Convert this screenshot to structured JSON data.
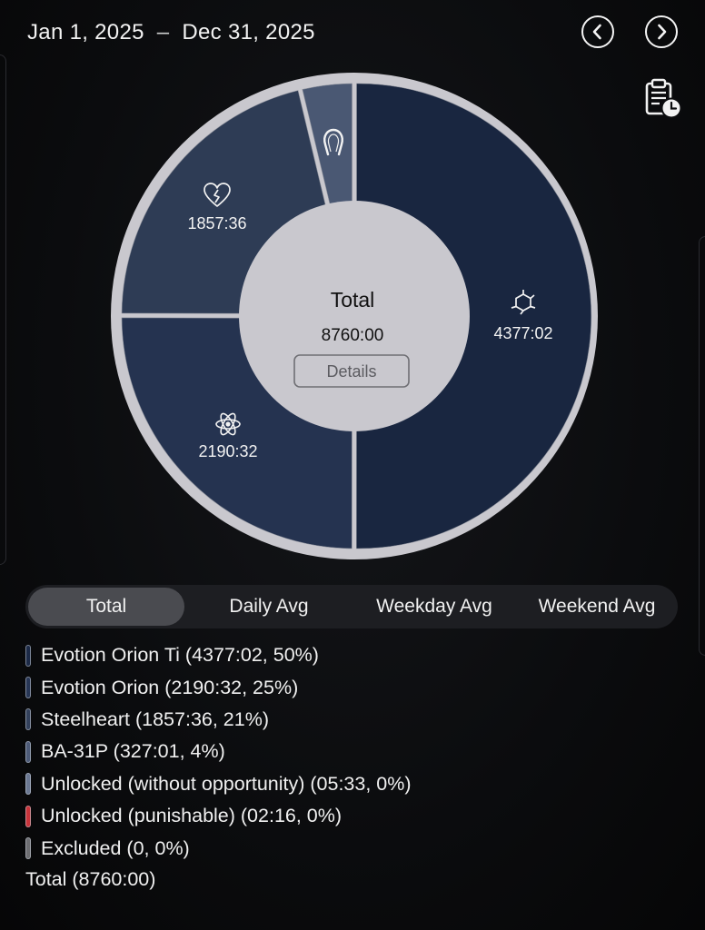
{
  "header": {
    "date_start": "Jan 1, 2025",
    "date_separator": "–",
    "date_end": "Dec 31, 2025",
    "prev_icon": "chevron-left-icon",
    "next_icon": "chevron-right-icon",
    "report_icon": "clipboard-clock-icon"
  },
  "chart_data": {
    "type": "pie",
    "variant": "donut",
    "center_title": "Total",
    "center_value": "8760:00",
    "center_button": "Details",
    "slices": [
      {
        "label": "Evotion Orion Ti",
        "value_hours": 4377.03,
        "display": "4377:02",
        "icon": "molecule-icon",
        "color": "#192640"
      },
      {
        "label": "Evotion Orion",
        "value_hours": 2190.53,
        "display": "2190:32",
        "icon": "atom-icon",
        "color": "#253350"
      },
      {
        "label": "Steelheart",
        "value_hours": 1857.6,
        "display": "1857:36",
        "icon": "broken-heart-icon",
        "color": "#2e3c55"
      },
      {
        "label": "BA-31P",
        "value_hours": 327.02,
        "display": "",
        "icon": "horseshoe-icon",
        "color": "#4a5873"
      }
    ]
  },
  "tabs": [
    "Total",
    "Daily Avg",
    "Weekday Avg",
    "Weekend Avg"
  ],
  "active_tab": 0,
  "legend": [
    {
      "text": "Evotion Orion Ti (4377:02, 50%)",
      "color": "#1c2a47"
    },
    {
      "text": "Evotion Orion (2190:32, 25%)",
      "color": "#273655"
    },
    {
      "text": "Steelheart (1857:36, 21%)",
      "color": "#33415c"
    },
    {
      "text": "BA-31P (327:01, 4%)",
      "color": "#4d5b78"
    },
    {
      "text": "Unlocked (without opportunity) (05:33, 0%)",
      "color": "#6b7893"
    },
    {
      "text": "Unlocked (punishable) (02:16, 0%)",
      "color": "#c8343b"
    },
    {
      "text": "Excluded (0, 0%)",
      "color": "#6d6e72"
    }
  ],
  "legend_total": "Total (8760:00)"
}
